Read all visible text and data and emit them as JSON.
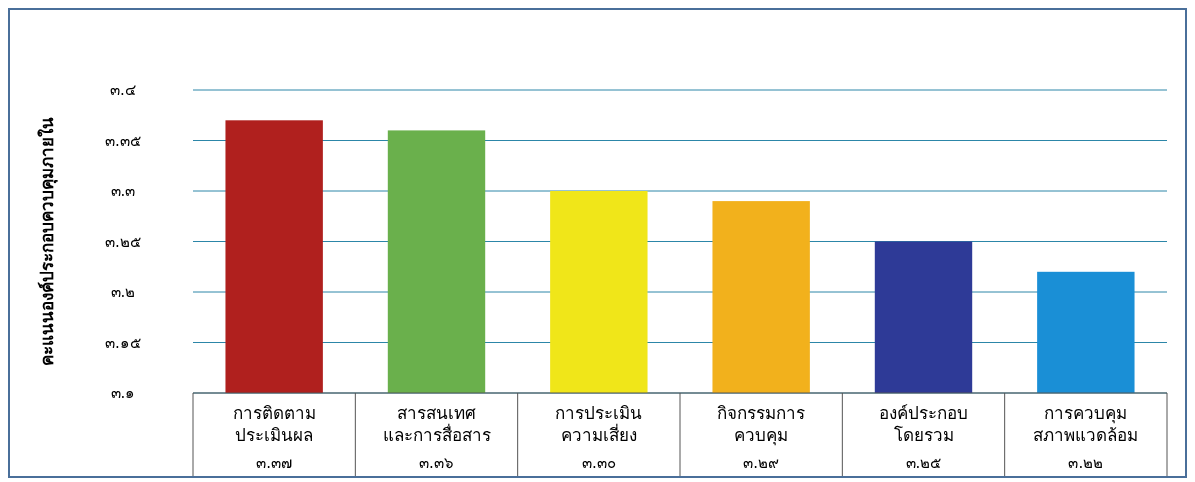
{
  "chart_data": {
    "type": "bar",
    "ylabel": "คะแนนองค์ประกอบควบคุมภายใน",
    "categories": [
      "การติดตาม\nประเมินผล",
      "สารสนเทศ\nและการสื่อสาร",
      "การประเมิน\nความเสี่ยง",
      "กิจกรรมการ\nควบคุม",
      "องค์ประกอบ\nโดยรวม",
      "การควบคุม\nสภาพแวดล้อม"
    ],
    "values": [
      3.37,
      3.36,
      3.3,
      3.29,
      3.25,
      3.22
    ],
    "colors": [
      "#b0201e",
      "#6ab04c",
      "#f0e619",
      "#f2b11c",
      "#2e3a97",
      "#1a8fd6"
    ],
    "value_labels": [
      "๓.๓๗",
      "๓.๓๖",
      "๓.๓๐",
      "๓.๒๙",
      "๓.๒๕",
      "๓.๒๒"
    ],
    "ylim": [
      3.1,
      3.4
    ],
    "yticks": [
      {
        "value": 3.1,
        "label": "๓.๑"
      },
      {
        "value": 3.15,
        "label": "๓.๑๕"
      },
      {
        "value": 3.2,
        "label": "๓.๒"
      },
      {
        "value": 3.25,
        "label": "๓.๒๕"
      },
      {
        "value": 3.3,
        "label": "๓.๓"
      },
      {
        "value": 3.35,
        "label": "๓.๓๕"
      },
      {
        "value": 3.4,
        "label": "๓.๔"
      }
    ],
    "grid": "y"
  }
}
